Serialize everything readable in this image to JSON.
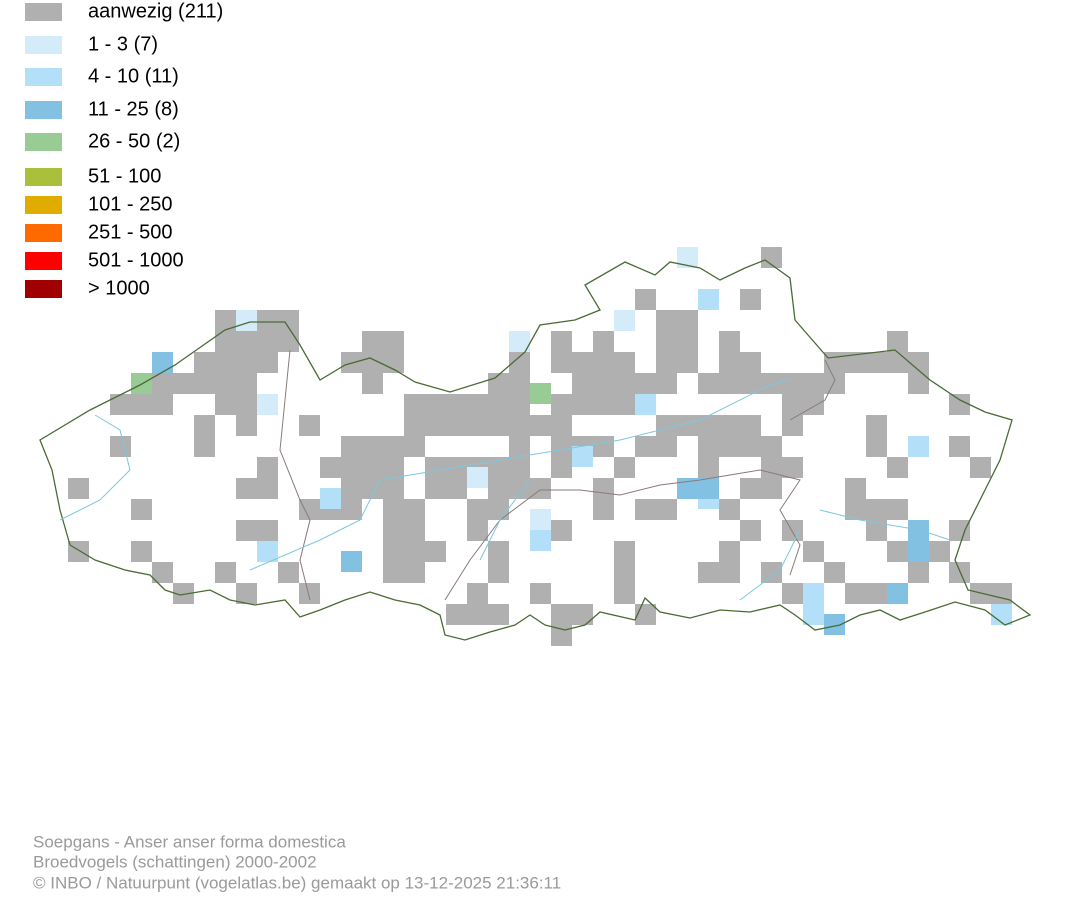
{
  "legend": [
    {
      "label": "aanwezig (211)",
      "color": "#b0b0b0"
    },
    {
      "label": "1 - 3 (7)",
      "color": "#d4ecfa"
    },
    {
      "label": "4 - 10 (11)",
      "color": "#b3e0f8"
    },
    {
      "label": "11 - 25 (8)",
      "color": "#82c1e2"
    },
    {
      "label": "26 - 50 (2)",
      "color": "#98cc94"
    },
    {
      "label": "51 - 100",
      "color": "#aac03a"
    },
    {
      "label": "101 - 250",
      "color": "#e1ac00"
    },
    {
      "label": "251 - 500",
      "color": "#ff6a00"
    },
    {
      "label": "501 - 1000",
      "color": "#ff0000"
    },
    {
      "label": "> 1000",
      "color": "#a00000"
    }
  ],
  "footer": {
    "species": "Soepgans - Anser anser forma domestica",
    "dataset": "Broedvogels (schattingen) 2000-2002",
    "credit": "© INBO / Natuurpunt (vogelatlas.be) gemaakt op 13-12-2025 21:36:11"
  }
}
